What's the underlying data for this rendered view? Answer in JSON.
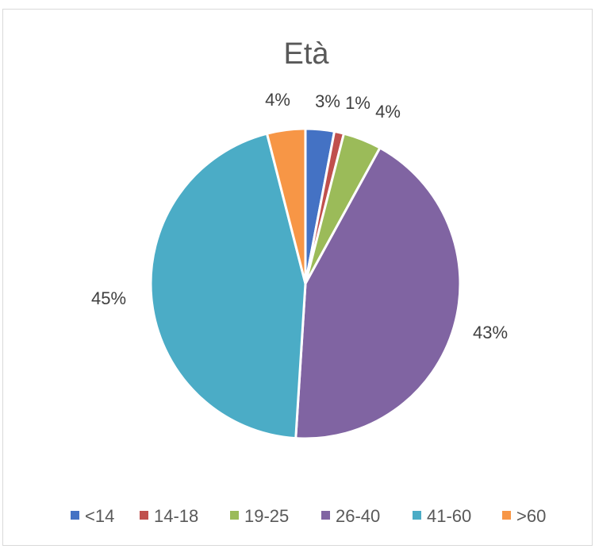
{
  "chart_data": {
    "type": "pie",
    "title": "Età",
    "categories": [
      "<14",
      "14-18",
      "19-25",
      "26-40",
      "41-60",
      ">60"
    ],
    "values": [
      3,
      1,
      4,
      43,
      45,
      4
    ],
    "data_labels": [
      "3%",
      "1%",
      "4%",
      "43%",
      "45%",
      "4%"
    ],
    "colors": [
      "#4472c4",
      "#c0504d",
      "#9bbb59",
      "#8064a2",
      "#4bacc6",
      "#f79646"
    ],
    "legend": "bottom"
  }
}
